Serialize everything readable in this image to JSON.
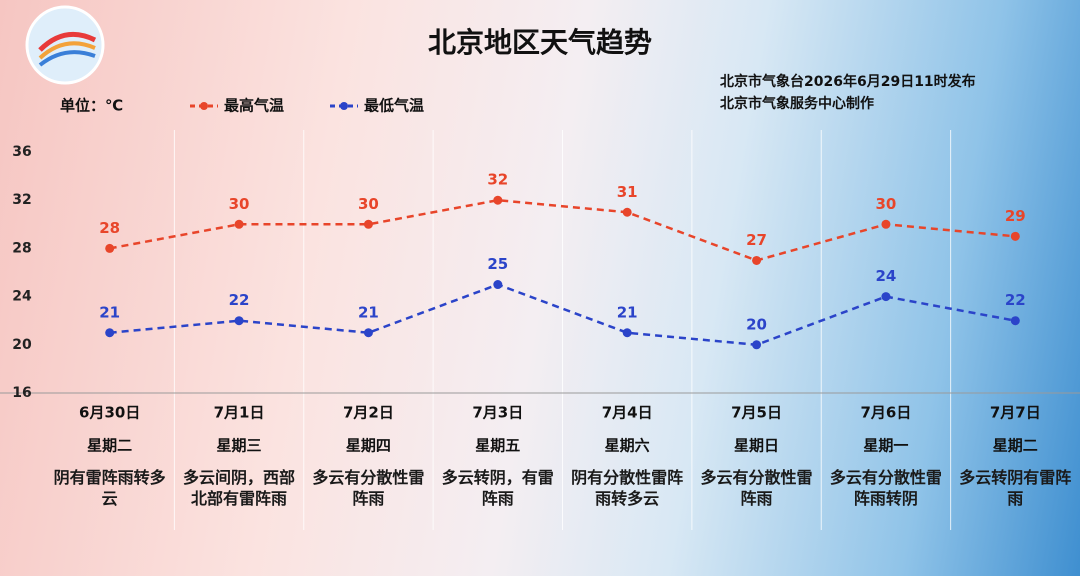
{
  "chart_data": {
    "type": "line",
    "title": "北京地区天气趋势",
    "notes": [
      "北京市气象台2026年6月29日11时发布",
      "北京市气象服务中心制作"
    ],
    "y_label": "单位：℃",
    "categories": [
      "6月30日",
      "7月1日",
      "7月2日",
      "7月3日",
      "7月4日",
      "7月5日",
      "7月6日",
      "7月7日"
    ],
    "weekdays": [
      "星期二",
      "星期三",
      "星期四",
      "星期五",
      "星期六",
      "星期日",
      "星期一",
      "星期二"
    ],
    "descriptions": [
      "阴有雷阵雨转多云",
      "多云间阴，西部北部有雷阵雨",
      "多云有分散性雷阵雨",
      "多云转阴，有雷阵雨",
      "阴有分散性雷阵雨转多云",
      "多云有分散性雷阵雨",
      "多云有分散性雷阵雨转阴",
      "多云转阴有雷阵雨"
    ],
    "series": [
      {
        "name": "最高气温",
        "color": "#e8452a",
        "values": [
          28,
          30,
          30,
          32,
          31,
          27,
          30,
          29
        ]
      },
      {
        "name": "最低气温",
        "color": "#2b44c9",
        "values": [
          21,
          22,
          21,
          25,
          21,
          20,
          24,
          22
        ]
      }
    ],
    "ylim": [
      16,
      36
    ],
    "yticks": [
      16,
      20,
      24,
      28,
      32,
      36
    ]
  }
}
